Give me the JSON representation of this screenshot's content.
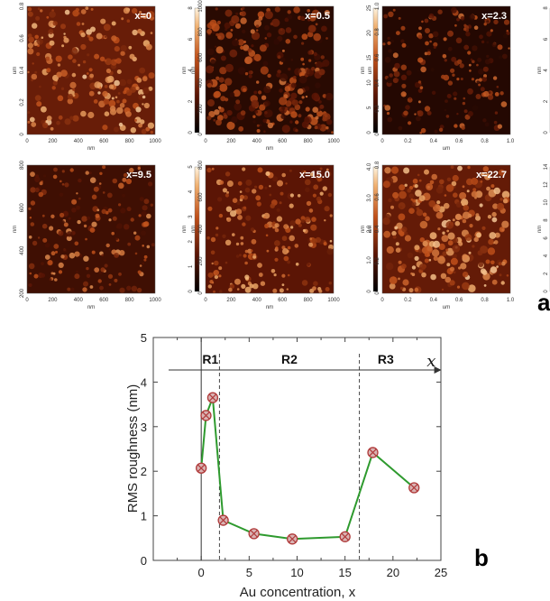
{
  "panel_a": {
    "letter": "a",
    "images": [
      {
        "label": "x=0",
        "xticks": [
          "0",
          "200",
          "400",
          "600",
          "800",
          "1000"
        ],
        "xunit": "nm",
        "yticks": [
          "0",
          "0.2",
          "0.4",
          "0.6",
          "0.8"
        ],
        "yunit": "um",
        "cbar_ticks": [
          "0",
          "2",
          "4",
          "6",
          "8"
        ],
        "cbar_unit": "nm",
        "roughness": 0.55,
        "brightness": 0.62
      },
      {
        "label": "x=0.5",
        "xticks": [
          "0",
          "200",
          "400",
          "600",
          "800",
          "1000"
        ],
        "xunit": "nm",
        "yticks": [
          "0",
          "200",
          "400",
          "600",
          "800",
          "1000"
        ],
        "yunit": "nm",
        "cbar_ticks": [
          "0",
          "5",
          "10",
          "15",
          "20",
          "25"
        ],
        "cbar_unit": "nm",
        "roughness": 0.9,
        "brightness": 0.25
      },
      {
        "label": "x=2.3",
        "xticks": [
          "0",
          "0.2",
          "0.4",
          "0.6",
          "0.8",
          "1.0"
        ],
        "xunit": "um",
        "yticks": [
          "0",
          "0.2",
          "0.4",
          "0.6",
          "0.8",
          "1.0"
        ],
        "yunit": "um",
        "cbar_ticks": [
          "0",
          "2",
          "4",
          "6",
          "8"
        ],
        "cbar_unit": "nm",
        "roughness": 0.35,
        "brightness": 0.22
      },
      {
        "label": "x=9.5",
        "xticks": [
          "0",
          "200",
          "400",
          "600",
          "800",
          "1000"
        ],
        "xunit": "nm",
        "yticks": [
          "200",
          "400",
          "600",
          "800"
        ],
        "yunit": "nm",
        "cbar_ticks": [
          "0",
          "1",
          "2",
          "3",
          "4",
          "5"
        ],
        "cbar_unit": "nm",
        "roughness": 0.3,
        "brightness": 0.38
      },
      {
        "label": "x=15.0",
        "xticks": [
          "0",
          "200",
          "400",
          "600",
          "800",
          "1000"
        ],
        "xunit": "nm",
        "yticks": [
          "0",
          "200",
          "400",
          "600",
          "800"
        ],
        "yunit": "nm",
        "cbar_ticks": [
          "0",
          "1.0",
          "2.0",
          "3.0",
          "4.0"
        ],
        "cbar_unit": "nm",
        "roughness": 0.45,
        "brightness": 0.55
      },
      {
        "label": "x=22.7",
        "xticks": [
          "0",
          "0.2",
          "0.4",
          "0.6",
          "0.8",
          "1.0"
        ],
        "xunit": "um",
        "yticks": [
          "0",
          "0.2",
          "0.4",
          "0.6",
          "0.8"
        ],
        "yunit": "um",
        "cbar_ticks": [
          "0",
          "2",
          "4",
          "6",
          "8",
          "10",
          "12",
          "14"
        ],
        "cbar_unit": "nm",
        "roughness": 0.8,
        "brightness": 0.6
      }
    ]
  },
  "panel_b": {
    "letter": "b",
    "regions": [
      "R1",
      "R2",
      "R3"
    ],
    "region_bounds": [
      1.9,
      16.5
    ],
    "xarrow_label": "x"
  },
  "chart_data": {
    "type": "line",
    "xlabel": "Au concentration, x",
    "ylabel": "RMS roughness (nm)",
    "xlim": [
      -5,
      25
    ],
    "ylim": [
      0,
      5
    ],
    "xticks": [
      0,
      5,
      10,
      15,
      20,
      25
    ],
    "yticks": [
      0,
      1,
      2,
      3,
      4,
      5
    ],
    "series": [
      {
        "x": [
          0,
          0.5,
          1.2,
          2.3,
          5.5,
          9.5,
          15.0,
          17.9,
          22.2
        ],
        "y": [
          2.07,
          3.25,
          3.65,
          0.9,
          0.6,
          0.48,
          0.53,
          2.42,
          1.63
        ]
      }
    ],
    "line_color": "#2e9a2e",
    "marker_color": "#b03a3a",
    "marker_fill": "#d9b3b3"
  }
}
